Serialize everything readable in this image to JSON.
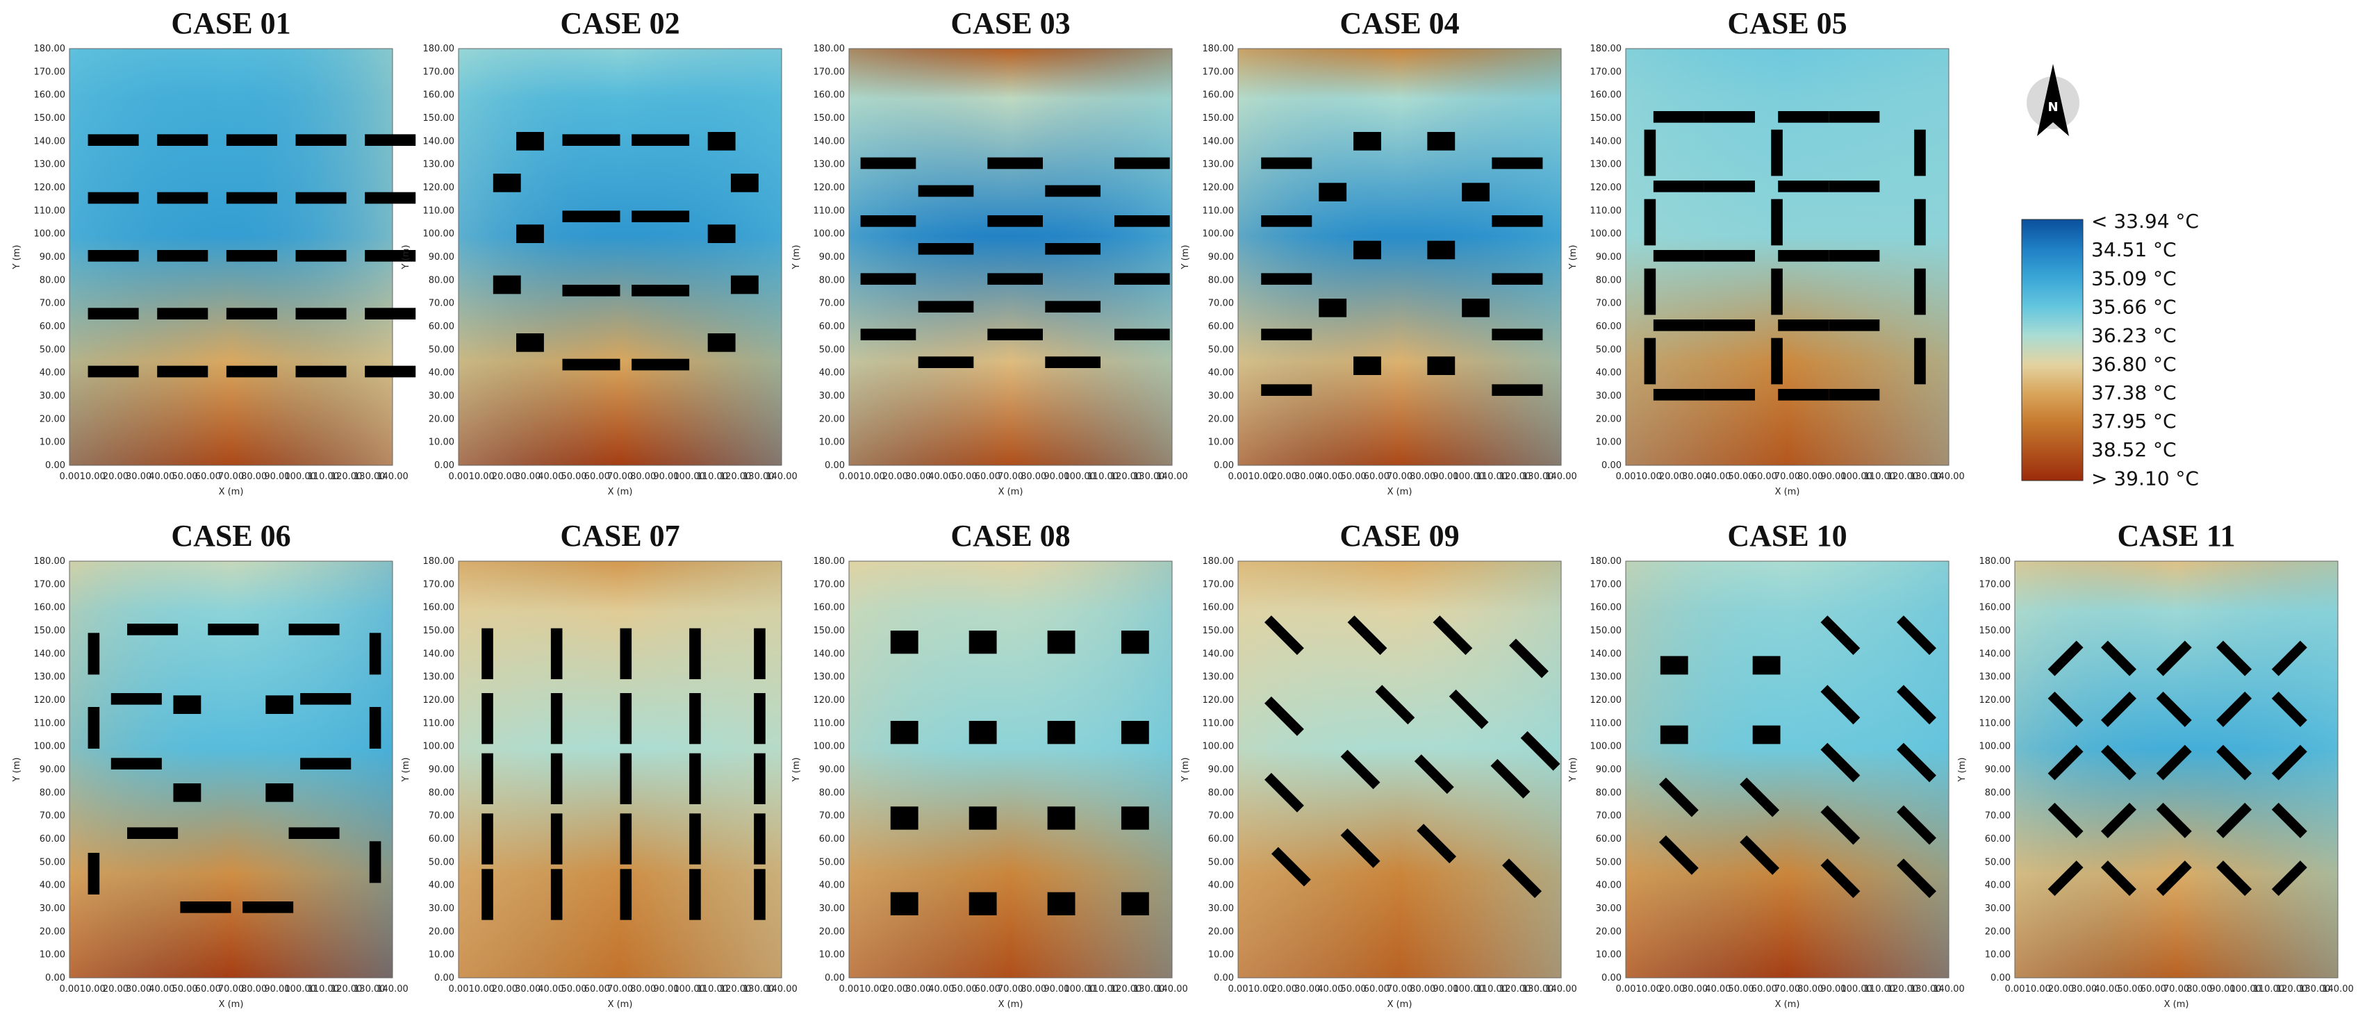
{
  "chart_data": {
    "type": "heatmap",
    "xlabel": "X (m)",
    "ylabel": "Y (m)",
    "xlim": [
      0,
      140
    ],
    "ylim": [
      0,
      180
    ],
    "x_ticks": [
      "0.00",
      "10.00",
      "20.00",
      "30.00",
      "40.00",
      "50.00",
      "60.00",
      "70.00",
      "80.00",
      "90.00",
      "100.00",
      "110.00",
      "120.00",
      "130.00",
      "140.00"
    ],
    "y_ticks": [
      "0.00",
      "10.00",
      "20.00",
      "30.00",
      "40.00",
      "50.00",
      "60.00",
      "70.00",
      "80.00",
      "90.00",
      "100.00",
      "110.00",
      "120.00",
      "130.00",
      "140.00",
      "150.00",
      "160.00",
      "170.00",
      "180.00"
    ],
    "legend": {
      "placement": "right",
      "entries": [
        "< 33.94 °C",
        "34.51 °C",
        "35.09 °C",
        "35.66 °C",
        "36.23 °C",
        "36.80 °C",
        "37.38 °C",
        "37.95 °C",
        "38.52 °C",
        "> 39.10 °C"
      ],
      "colors": [
        "#0b4f9c",
        "#1f7fc4",
        "#3aa6d6",
        "#63c6df",
        "#a9dcd3",
        "#e3d3a1",
        "#d9a55b",
        "#c67a2f",
        "#b1531d",
        "#9b2b0a"
      ]
    },
    "panels": [
      {
        "title": "CASE 01",
        "temps": {
          "top": 0.3,
          "mid": 0.2,
          "bottom": 0.92,
          "left": 0.35,
          "right": 0.5
        }
      },
      {
        "title": "CASE 02",
        "temps": {
          "top": 0.4,
          "mid": 0.18,
          "bottom": 0.95,
          "left": 0.45,
          "right": 0.3
        }
      },
      {
        "title": "CASE 03",
        "temps": {
          "top": 0.85,
          "mid": 0.12,
          "bottom": 0.9,
          "left": 0.4,
          "right": 0.35
        }
      },
      {
        "title": "CASE 04",
        "temps": {
          "top": 0.75,
          "mid": 0.15,
          "bottom": 0.92,
          "left": 0.5,
          "right": 0.3
        }
      },
      {
        "title": "CASE 05",
        "temps": {
          "top": 0.35,
          "mid": 0.4,
          "bottom": 0.88,
          "left": 0.45,
          "right": 0.4
        }
      },
      {
        "title": "CASE 06",
        "temps": {
          "top": 0.5,
          "mid": 0.3,
          "bottom": 0.95,
          "left": 0.6,
          "right": 0.2
        }
      },
      {
        "title": "CASE 07",
        "temps": {
          "top": 0.7,
          "mid": 0.45,
          "bottom": 0.8,
          "left": 0.55,
          "right": 0.5
        }
      },
      {
        "title": "CASE 08",
        "temps": {
          "top": 0.55,
          "mid": 0.4,
          "bottom": 0.9,
          "left": 0.55,
          "right": 0.3
        }
      },
      {
        "title": "CASE 09",
        "temps": {
          "top": 0.65,
          "mid": 0.45,
          "bottom": 0.85,
          "left": 0.55,
          "right": 0.4
        }
      },
      {
        "title": "CASE 10",
        "temps": {
          "top": 0.45,
          "mid": 0.35,
          "bottom": 0.95,
          "left": 0.6,
          "right": 0.3
        }
      },
      {
        "title": "CASE 11",
        "temps": {
          "top": 0.6,
          "mid": 0.25,
          "bottom": 0.85,
          "left": 0.5,
          "right": 0.35
        }
      }
    ]
  },
  "icons": {
    "north_arrow": "north-arrow-icon"
  },
  "north_label": "N"
}
